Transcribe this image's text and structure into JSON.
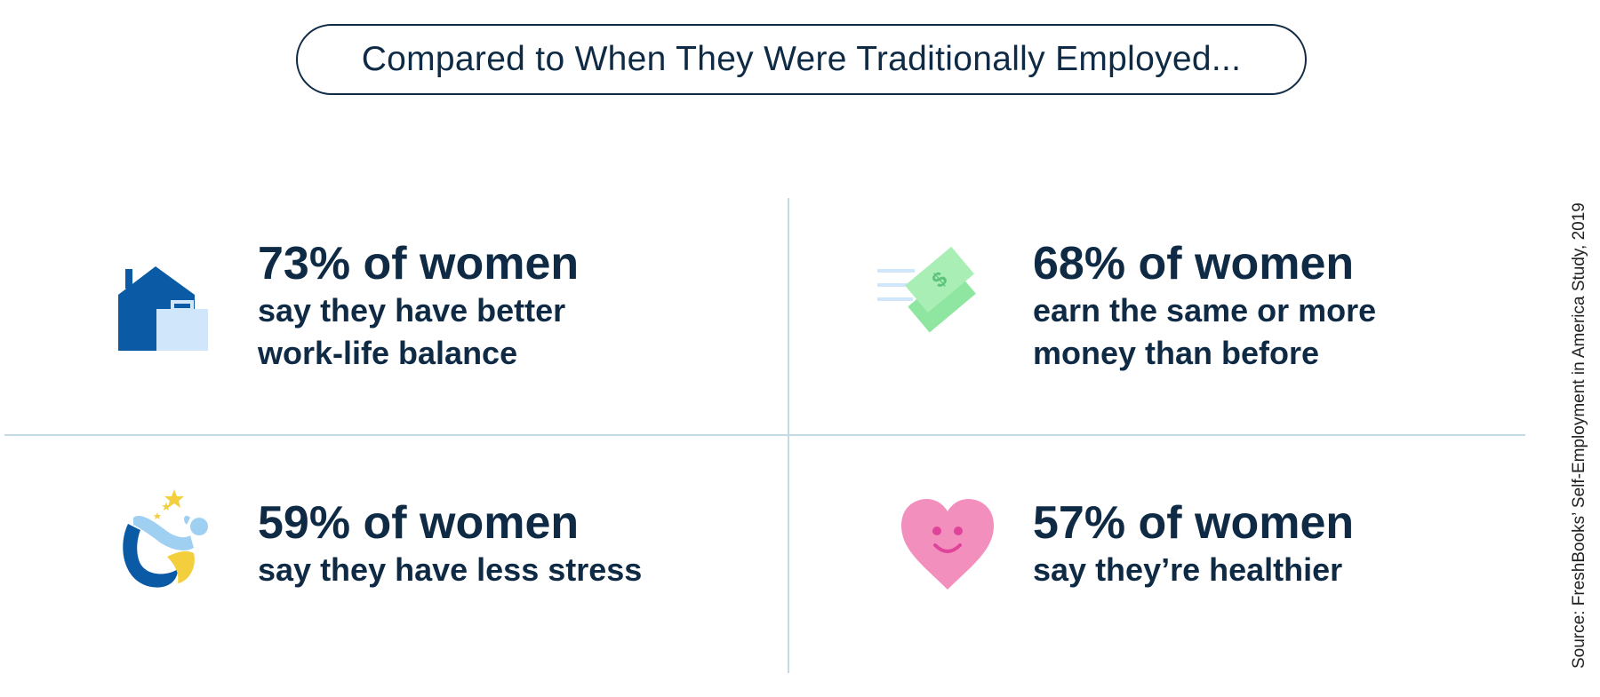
{
  "header": {
    "title": "Compared to When They Were Traditionally Employed..."
  },
  "stats": [
    {
      "headline": "73% of women",
      "lines": [
        "say they have better",
        "work-life balance"
      ],
      "icon": "house-briefcase-icon"
    },
    {
      "headline": "68% of women",
      "lines": [
        "earn the same or more",
        "money than before"
      ],
      "icon": "money-bills-icon"
    },
    {
      "headline": "59% of women",
      "lines": [
        "say they have less stress"
      ],
      "icon": "yoga-pose-icon"
    },
    {
      "headline": "57% of women",
      "lines": [
        "say they’re healthier"
      ],
      "icon": "smiling-heart-icon"
    }
  ],
  "source": "Source: FreshBooks’ Self-Employment in America Study, 2019",
  "colors": {
    "text": "#0f2a44",
    "divider": "#c2dbe6",
    "house": "#0b5aa6",
    "briefcase": "#cfe6fb",
    "money": "#8ee6a0",
    "heart": "#f38fbd",
    "yoga_skin": "#9fd0f2",
    "yoga_dark": "#0b5aa6",
    "yoga_yellow": "#f4cf3d"
  }
}
